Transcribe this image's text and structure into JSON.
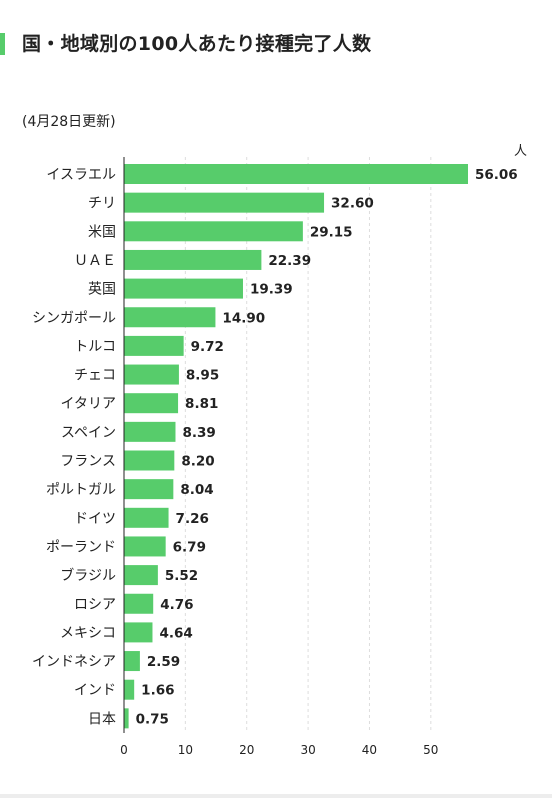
{
  "header": {
    "title": "国・地域別の100人あたり接種完了人数",
    "updated": "(4月28日更新)",
    "unit": "人"
  },
  "colors": {
    "bar": "#57cc6b",
    "accent": "#57cc6b",
    "grid": "#dddddd",
    "axis": "#222222"
  },
  "chart_data": {
    "type": "bar",
    "orientation": "horizontal",
    "title": "国・地域別の100人あたり接種完了人数",
    "categories": [
      "イスラエル",
      "チリ",
      "米国",
      "ＵＡＥ",
      "英国",
      "シンガポール",
      "トルコ",
      "チェコ",
      "イタリア",
      "スペイン",
      "フランス",
      "ポルトガル",
      "ドイツ",
      "ポーランド",
      "ブラジル",
      "ロシア",
      "メキシコ",
      "インドネシア",
      "インド",
      "日本"
    ],
    "values": [
      56.06,
      32.6,
      29.15,
      22.39,
      19.39,
      14.9,
      9.72,
      8.95,
      8.81,
      8.39,
      8.2,
      8.04,
      7.26,
      6.79,
      5.52,
      4.76,
      4.64,
      2.59,
      1.66,
      0.75
    ],
    "value_labels": [
      "56.06",
      "32.60",
      "29.15",
      "22.39",
      "19.39",
      "14.90",
      "9.72",
      "8.95",
      "8.81",
      "8.39",
      "8.20",
      "8.04",
      "7.26",
      "6.79",
      "5.52",
      "4.76",
      "4.64",
      "2.59",
      "1.66",
      "0.75"
    ],
    "xticks": [
      0,
      10,
      20,
      30,
      40,
      50
    ],
    "xlim": [
      0,
      56.06
    ],
    "xlabel": "",
    "ylabel": "",
    "unit": "人",
    "grid": true
  }
}
